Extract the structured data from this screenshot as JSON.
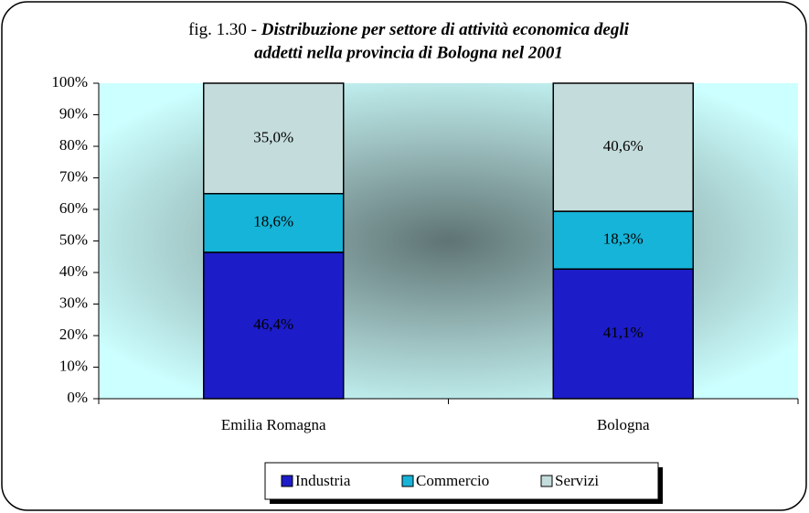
{
  "chart_data": {
    "type": "stacked_bar",
    "title": [
      "fig. 1.30 -",
      "Distribuzione per settore di attività economica degli",
      "addetti  nella provincia di Bologna nel 2001"
    ],
    "categories": [
      "Emilia Romagna",
      "Bologna"
    ],
    "series": [
      {
        "name": "Industria",
        "color": "#1c1cc8",
        "values": [
          46.4,
          41.1
        ],
        "value_labels": [
          "46,4%",
          "41,1%"
        ]
      },
      {
        "name": "Commercio",
        "color": "#16b4d8",
        "values": [
          18.6,
          18.3
        ],
        "value_labels": [
          "18,6%",
          "18,3%"
        ]
      },
      {
        "name": "Servizi",
        "color": "#c4dcdc",
        "values": [
          35.0,
          40.6
        ],
        "value_labels": [
          "35,0%",
          "40,6%"
        ]
      }
    ],
    "ylim": [
      0,
      100
    ],
    "yticks": [
      {
        "value": 0,
        "label": "0%"
      },
      {
        "value": 10,
        "label": "10%"
      },
      {
        "value": 20,
        "label": "20%"
      },
      {
        "value": 30,
        "label": "30%"
      },
      {
        "value": 40,
        "label": "40%"
      },
      {
        "value": 50,
        "label": "50%"
      },
      {
        "value": 60,
        "label": "60%"
      },
      {
        "value": 70,
        "label": "70%"
      },
      {
        "value": 80,
        "label": "80%"
      },
      {
        "value": 90,
        "label": "90%"
      },
      {
        "value": 100,
        "label": "100%"
      }
    ],
    "legend": "bottom"
  }
}
